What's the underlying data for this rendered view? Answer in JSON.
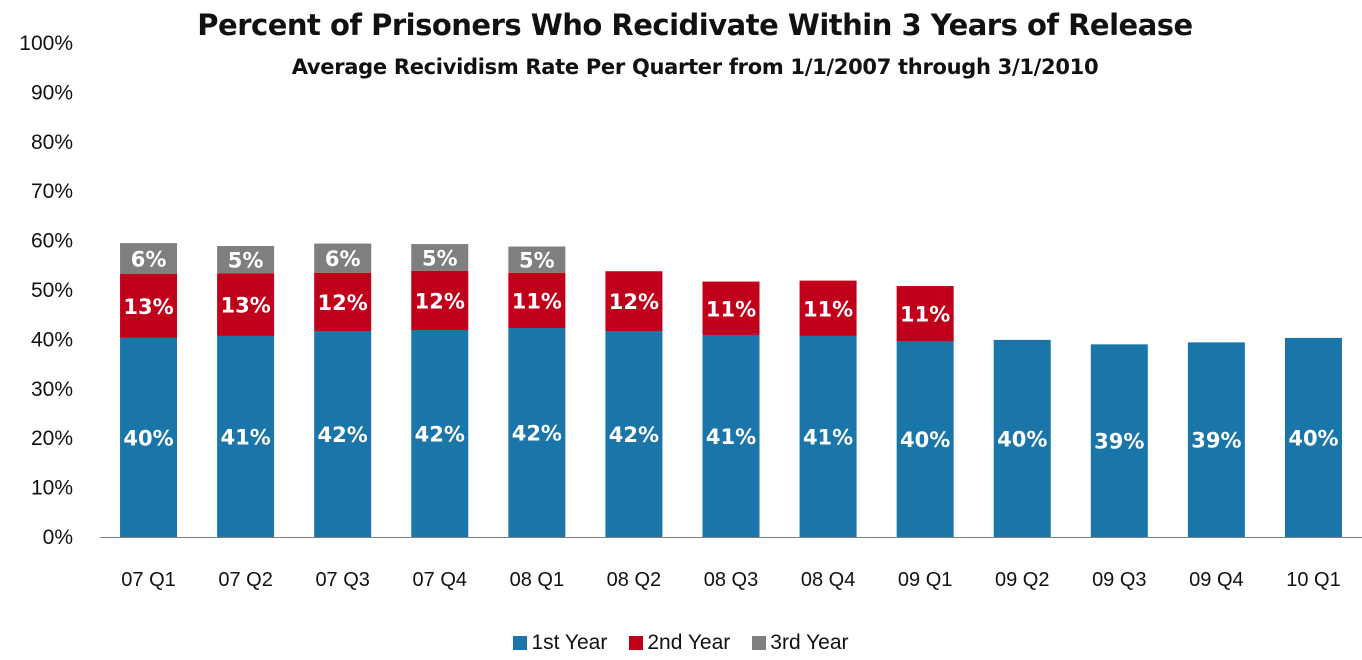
{
  "chart_data": {
    "type": "bar",
    "stacked": true,
    "title": "Percent of Prisoners Who Recidivate Within 3 Years of Release",
    "subtitle": "Average Recividism Rate Per Quarter from 1/1/2007 through 3/1/2010",
    "categories": [
      "07 Q1",
      "07 Q2",
      "07 Q3",
      "07 Q4",
      "08 Q1",
      "08 Q2",
      "08 Q3",
      "08 Q4",
      "09 Q1",
      "09 Q2",
      "09 Q3",
      "09 Q4",
      "10 Q1"
    ],
    "series": [
      {
        "name": "1st Year",
        "color": "#1a76a8",
        "values": [
          40.3,
          40.7,
          41.7,
          41.9,
          42.3,
          41.7,
          40.9,
          40.7,
          39.6,
          39.9,
          39.0,
          39.4,
          40.3
        ],
        "labels": [
          "40%",
          "41%",
          "42%",
          "42%",
          "42%",
          "42%",
          "41%",
          "41%",
          "40%",
          "40%",
          "39%",
          "39%",
          "40%"
        ]
      },
      {
        "name": "2nd Year",
        "color": "#c0001a",
        "values": [
          13.0,
          12.7,
          11.8,
          12.0,
          11.2,
          12.1,
          10.8,
          11.2,
          11.2,
          null,
          null,
          null,
          null
        ],
        "labels": [
          "13%",
          "13%",
          "12%",
          "12%",
          "11%",
          "12%",
          "11%",
          "11%",
          "11%",
          "",
          "",
          "",
          ""
        ]
      },
      {
        "name": "3rd Year",
        "color": "#7f7f7f",
        "values": [
          6.2,
          5.5,
          5.9,
          5.4,
          5.3,
          null,
          null,
          null,
          null,
          null,
          null,
          null,
          null
        ],
        "labels": [
          "6%",
          "5%",
          "6%",
          "5%",
          "5%",
          "",
          "",
          "",
          "",
          "",
          "",
          "",
          ""
        ]
      }
    ],
    "yticks": [
      "0%",
      "10%",
      "20%",
      "30%",
      "40%",
      "50%",
      "60%",
      "70%",
      "80%",
      "90%",
      "100%"
    ],
    "ylim": [
      0,
      100
    ],
    "xlabel": "",
    "ylabel": "",
    "grid": false,
    "legend_position": "bottom"
  }
}
